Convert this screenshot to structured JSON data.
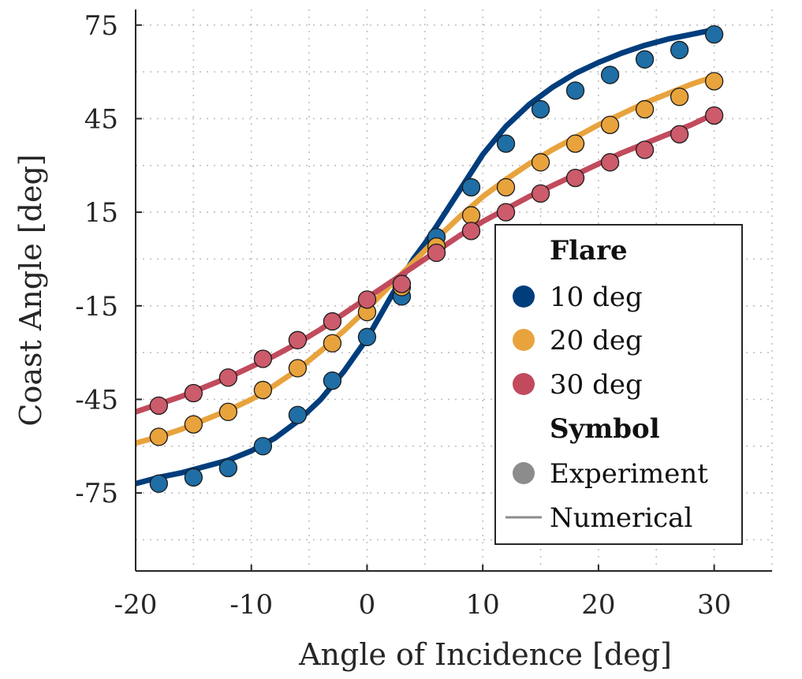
{
  "chart_data": {
    "type": "line",
    "xlabel": "Angle of Incidence [deg]",
    "ylabel": "Coast Angle [deg]",
    "xlim": [
      -20,
      35
    ],
    "ylim": [
      -100,
      80
    ],
    "xticks": [
      -20,
      -10,
      0,
      10,
      20,
      30
    ],
    "yticks": [
      -75,
      -45,
      -15,
      15,
      45,
      75
    ],
    "xtick_labels": [
      "-20",
      "-10",
      "0",
      "10",
      "20",
      "30"
    ],
    "ytick_labels": [
      "-75",
      "-45",
      "-15",
      "15",
      "45",
      "75"
    ],
    "grid": true,
    "legend_position": "right",
    "legend": {
      "group1_title": "Flare",
      "group2_title": "Symbol",
      "experiment_label": "Experiment",
      "numerical_label": "Numerical",
      "symbol_color": "#8c8c8c"
    },
    "series": [
      {
        "name": "10 deg",
        "color": "#003d7c",
        "marker_color": "#1f6ea6",
        "experiment": {
          "x": [
            -18,
            -15,
            -12,
            -9,
            -6,
            -3,
            0,
            3,
            6,
            9,
            12,
            15,
            18,
            21,
            24,
            27,
            30
          ],
          "y": [
            -72,
            -70,
            -67,
            -60,
            -50,
            -39,
            -25,
            -12,
            7,
            23,
            37,
            48,
            54,
            59,
            64,
            67,
            72
          ]
        },
        "numerical": {
          "x": [
            -20,
            -18,
            -16,
            -14,
            -12,
            -10,
            -8,
            -6,
            -4,
            -2,
            0,
            2,
            4,
            5,
            6,
            8,
            10,
            12,
            14,
            16,
            18,
            20,
            22,
            24,
            26,
            28,
            30
          ],
          "y": [
            -72,
            -70,
            -68.5,
            -66.5,
            -64.5,
            -61.5,
            -57.5,
            -52,
            -45,
            -36,
            -25.5,
            -12.5,
            0,
            5,
            10.5,
            22,
            33.5,
            42.5,
            49.5,
            55,
            59.5,
            63,
            66,
            68.5,
            70.5,
            72,
            73.5
          ]
        }
      },
      {
        "name": "20 deg",
        "color": "#e8a33d",
        "marker_color": "#e8a33d",
        "experiment": {
          "x": [
            -18,
            -15,
            -12,
            -9,
            -6,
            -3,
            0,
            3,
            6,
            9,
            12,
            15,
            18,
            21,
            24,
            27,
            30
          ],
          "y": [
            -57,
            -53,
            -49,
            -42,
            -35,
            -27,
            -17,
            -9,
            4,
            14,
            23,
            31,
            37,
            43,
            48,
            52,
            57
          ]
        },
        "numerical": {
          "x": [
            -20,
            -18,
            -16,
            -14,
            -12,
            -10,
            -8,
            -6,
            -4,
            -2,
            0,
            2,
            4,
            6,
            8,
            10,
            12,
            14,
            16,
            18,
            20,
            22,
            24,
            26,
            28,
            30
          ],
          "y": [
            -59,
            -57,
            -54.5,
            -51.5,
            -48.5,
            -45,
            -40.5,
            -35.5,
            -29.5,
            -23,
            -16,
            -8.5,
            -1,
            6.5,
            13.5,
            20,
            25.5,
            30.5,
            35,
            39,
            43,
            46.5,
            50,
            53,
            56,
            58.5
          ]
        }
      },
      {
        "name": "30 deg",
        "color": "#c14b5c",
        "marker_color": "#cc5b6b",
        "experiment": {
          "x": [
            -18,
            -15,
            -12,
            -9,
            -6,
            -3,
            0,
            3,
            6,
            9,
            12,
            15,
            18,
            21,
            24,
            27,
            30
          ],
          "y": [
            -47,
            -43,
            -38,
            -32,
            -26,
            -20,
            -13,
            -8,
            2,
            9,
            15,
            21,
            26,
            31,
            35,
            40,
            46
          ]
        },
        "numerical": {
          "x": [
            -20,
            -18,
            -16,
            -14,
            -12,
            -10,
            -8,
            -6,
            -4,
            -2,
            0,
            2,
            4,
            6,
            8,
            10,
            12,
            14,
            16,
            18,
            20,
            22,
            24,
            26,
            28,
            30
          ],
          "y": [
            -49,
            -46.5,
            -44,
            -41,
            -38,
            -34.5,
            -31,
            -27,
            -22.5,
            -17.5,
            -12.5,
            -7.5,
            -2.5,
            2.5,
            7.5,
            12,
            16,
            20,
            23.5,
            27,
            30.5,
            34,
            37,
            40,
            43,
            46.5
          ]
        }
      }
    ]
  }
}
